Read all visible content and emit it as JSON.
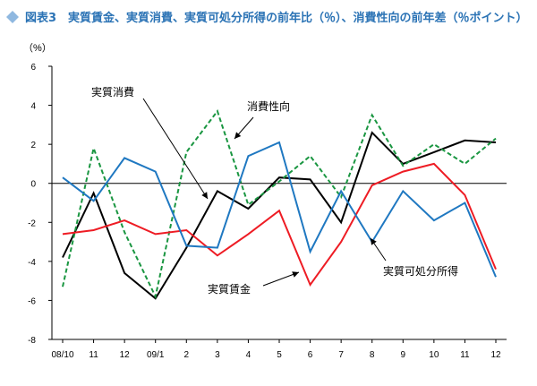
{
  "title": "図表3　実質賃金、実質消費、実質可処分所得の前年比（％）、消費性向の前年差（％ポイント）",
  "colors": {
    "title": "#2b73b5",
    "title_diamond": "#8fb8e0",
    "実質消費": "#000000",
    "消費性向": "#1a9641",
    "実質賃金": "#ee1c24",
    "実質可処分所得": "#1f78c1",
    "axis": "#000000"
  },
  "chart_data": {
    "type": "line",
    "unit_label": "（%）",
    "categories": [
      "08/10",
      "11",
      "12",
      "09/1",
      "2",
      "3",
      "4",
      "5",
      "6",
      "7",
      "8",
      "9",
      "10",
      "11",
      "12"
    ],
    "ylim": [
      -8,
      6
    ],
    "yticks": [
      -8,
      -6,
      -4,
      -2,
      0,
      2,
      4,
      6
    ],
    "grid": false,
    "legend": "none",
    "series": [
      {
        "name": "実質消費",
        "style": "solid",
        "values": [
          -3.8,
          -0.5,
          -4.6,
          -5.9,
          -3.3,
          -0.4,
          -1.3,
          0.3,
          0.2,
          -2.0,
          2.6,
          1.0,
          1.6,
          2.2,
          2.1
        ]
      },
      {
        "name": "消費性向",
        "style": "dashed",
        "values": [
          -5.3,
          1.8,
          -2.5,
          -5.8,
          1.6,
          3.7,
          -1.1,
          0.1,
          1.4,
          -0.7,
          3.5,
          0.9,
          2.0,
          1.0,
          2.3
        ]
      },
      {
        "name": "実質賃金",
        "style": "solid",
        "values": [
          -2.6,
          -2.4,
          -1.9,
          -2.6,
          -2.4,
          -3.7,
          -2.6,
          -1.4,
          -5.2,
          -3.0,
          -0.1,
          0.6,
          1.0,
          -0.6,
          -4.4
        ]
      },
      {
        "name": "実質可処分所得",
        "style": "solid",
        "values": [
          0.3,
          -0.9,
          1.3,
          0.6,
          -3.2,
          -3.3,
          1.4,
          2.1,
          -3.5,
          -0.4,
          -3.0,
          -0.4,
          -1.9,
          -1.0,
          -4.8
        ]
      }
    ],
    "annotations": [
      {
        "text": "実質消費",
        "series": "実質消費"
      },
      {
        "text": "消費性向",
        "series": "消費性向"
      },
      {
        "text": "実質賃金",
        "series": "実質賃金"
      },
      {
        "text": "実質可処分所得",
        "series": "実質可処分所得"
      }
    ]
  }
}
